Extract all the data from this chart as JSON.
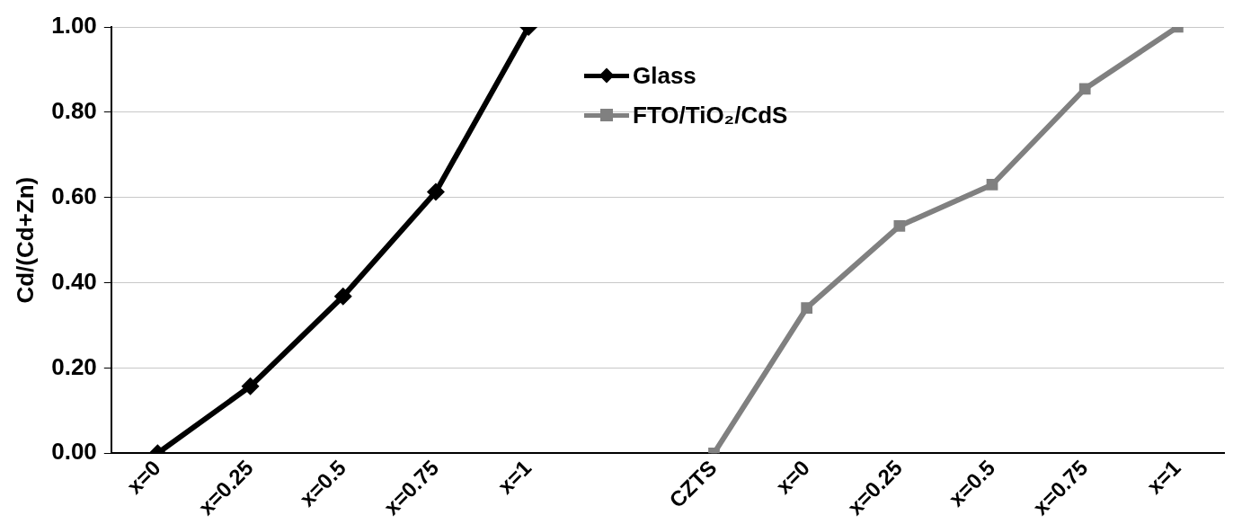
{
  "chart_data": {
    "type": "line",
    "ylabel": "Cd/(Cd+Zn)",
    "categories": [
      "x=0",
      "x=0.25",
      "x=0.5",
      "x=0.75",
      "x=1",
      null,
      "CZTS",
      "x=0",
      "x=0.25",
      "x=0.5",
      "x=0.75",
      "x=1"
    ],
    "series": [
      {
        "name": "Glass",
        "color": "#000000",
        "marker": "diamond",
        "values": [
          0,
          0.157,
          0.368,
          0.613,
          1.0,
          null,
          null,
          null,
          null,
          null,
          null,
          null
        ]
      },
      {
        "name": "FTO/TiO₂/CdS",
        "color": "#808080",
        "marker": "square",
        "values": [
          null,
          null,
          null,
          null,
          null,
          null,
          0,
          0.341,
          0.533,
          0.63,
          0.855,
          1.0
        ]
      }
    ],
    "ylim": [
      0,
      1
    ],
    "yticks": [
      {
        "value": 0,
        "label": "0.00"
      },
      {
        "value": 0.2,
        "label": "0.20"
      },
      {
        "value": 0.4,
        "label": "0.40"
      },
      {
        "value": 0.6,
        "label": "0.60"
      },
      {
        "value": 0.8,
        "label": "0.80"
      },
      {
        "value": 1,
        "label": "1.00"
      }
    ],
    "grid": "y",
    "legend": "top",
    "line_style": "solid"
  }
}
